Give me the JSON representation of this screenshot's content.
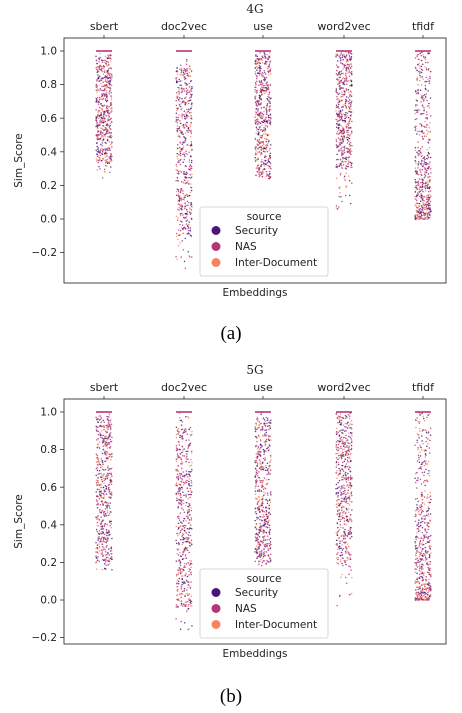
{
  "captions": [
    "(a)",
    "(b)"
  ],
  "chart_data": [
    {
      "type": "scatter",
      "title": "4G",
      "xlabel": "Embeddings",
      "ylabel": "Sim_Score",
      "categories": [
        "sbert",
        "doc2vec",
        "use",
        "word2vec",
        "tfidf"
      ],
      "ylim": [
        -0.3,
        1.03
      ],
      "yticks": [
        -0.2,
        0.0,
        0.2,
        0.4,
        0.6,
        0.8,
        1.0
      ],
      "grid": false,
      "legend": {
        "title": "source",
        "placement": "lower-center"
      },
      "series": [
        {
          "name": "Security",
          "color": "#4a1778"
        },
        {
          "name": "NAS",
          "color": "#b5367a"
        },
        {
          "name": "Inter-Document",
          "color": "#f8845f"
        }
      ],
      "distributions": [
        {
          "category": "sbert",
          "min": 0.22,
          "max": 1.0,
          "dense_min": 0.33,
          "dense_max": 0.98
        },
        {
          "category": "doc2vec",
          "min": -0.3,
          "max": 1.0,
          "dense_min": -0.1,
          "dense_max": 0.9
        },
        {
          "category": "use",
          "min": 0.22,
          "max": 1.0,
          "dense_min": 0.25,
          "dense_max": 0.98
        },
        {
          "category": "word2vec",
          "min": 0.05,
          "max": 1.0,
          "dense_min": 0.3,
          "dense_max": 0.99
        },
        {
          "category": "tfidf",
          "min": 0.0,
          "max": 1.0,
          "dense_min": 0.0,
          "dense_max": 0.4
        }
      ]
    },
    {
      "type": "scatter",
      "title": "5G",
      "xlabel": "Embeddings",
      "ylabel": "Sim_Score",
      "categories": [
        "sbert",
        "doc2vec",
        "use",
        "word2vec",
        "tfidf"
      ],
      "ylim": [
        -0.23,
        1.03
      ],
      "yticks": [
        -0.2,
        0.0,
        0.2,
        0.4,
        0.6,
        0.8,
        1.0
      ],
      "grid": false,
      "legend": {
        "title": "source",
        "placement": "lower-center"
      },
      "series": [
        {
          "name": "Security",
          "color": "#4a1778"
        },
        {
          "name": "NAS",
          "color": "#b5367a"
        },
        {
          "name": "Inter-Document",
          "color": "#f8845f"
        }
      ],
      "distributions": [
        {
          "category": "sbert",
          "min": 0.14,
          "max": 1.0,
          "dense_min": 0.2,
          "dense_max": 0.98
        },
        {
          "category": "doc2vec",
          "min": -0.2,
          "max": 1.0,
          "dense_min": -0.05,
          "dense_max": 0.92
        },
        {
          "category": "use",
          "min": 0.18,
          "max": 1.0,
          "dense_min": 0.2,
          "dense_max": 0.98
        },
        {
          "category": "word2vec",
          "min": -0.03,
          "max": 1.0,
          "dense_min": 0.2,
          "dense_max": 0.99
        },
        {
          "category": "tfidf",
          "min": 0.0,
          "max": 1.0,
          "dense_min": 0.0,
          "dense_max": 0.5
        }
      ]
    }
  ]
}
